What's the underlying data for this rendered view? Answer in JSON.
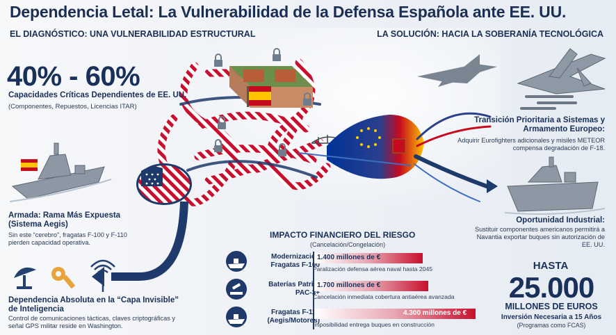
{
  "title": "Dependencia Letal: La Vulnerabilidad de la Defensa Española ante EE. UU.",
  "left_section": {
    "heading": "EL DIAGNÓSTICO: UNA VULNERABILIDAD ESTRUCTURAL",
    "stat": "40% - 60%",
    "stat_label": "Capacidades Críticas Dependientes de EE. UU.",
    "stat_note": "(Componentes, Repuestos, Licencias ITAR)",
    "armada": {
      "title": "Armada: Rama Más Expuesta (Sistema Aegis)",
      "text": "Sin este “cerebro”, fragatas F-100 y F-110 pierden capacidad operativa."
    },
    "intel": {
      "title": "Dependencia Absoluta en la “Capa Invisible” de Inteligencia",
      "text": "Control de comunicaciones tácticas, claves criptográficas y señal GPS militar reside en Washington."
    }
  },
  "right_section": {
    "heading": "LA SOLUCIÓN: HACIA LA SOBERANÍA TECNOLÓGICA",
    "transition": {
      "title": "Transición Prioritaria a Sistemas y Armamento Europeo:",
      "text": "Adquirir Eurofighters adicionales y misiles METEOR compensa degradación de F-18."
    },
    "opportunity": {
      "title": "Oportunidad Industrial:",
      "text": "Sustituir componentes americanos permitirá a Navantia exportar buques sin autorización de EE. UU."
    },
    "investment": {
      "prefix": "HASTA",
      "amount": "25.000",
      "unit": "MILLONES DE EUROS",
      "label": "Inversión Necesaria a 15 Años",
      "note": "(Programas como FCAS)"
    }
  },
  "impact": {
    "title": "IMPACTO FINANCIERO DEL RIESGO",
    "subtitle": "(Cancelación/Congelación)",
    "rows": [
      {
        "label": "Modernización Fragatas F-100",
        "amount": "1.400 millones de €",
        "value_millions": 1400,
        "description": "Paralización defensa aérea naval hasta 2045",
        "icon": "frigate-icon"
      },
      {
        "label": "Baterías Patriot PAC-3+",
        "amount": "1.700 millones de €",
        "value_millions": 1700,
        "description": "Cancelación inmediata cobertura antiaérea avanzada",
        "icon": "missile-battery-icon"
      },
      {
        "label": "Fragatas F-110 (Aegis/Motores)",
        "amount": "4.300 millones de €",
        "value_millions": 4300,
        "description": "Imposibilidad entrega buques en construcción",
        "icon": "frigate-icon"
      }
    ]
  },
  "colors": {
    "navy": "#1b2f55",
    "usa_red": "#c8102e",
    "eu_blue": "#003399",
    "eu_gold": "#ffcc00",
    "spain_red": "#c60b1e",
    "spain_yellow": "#ffc400"
  }
}
